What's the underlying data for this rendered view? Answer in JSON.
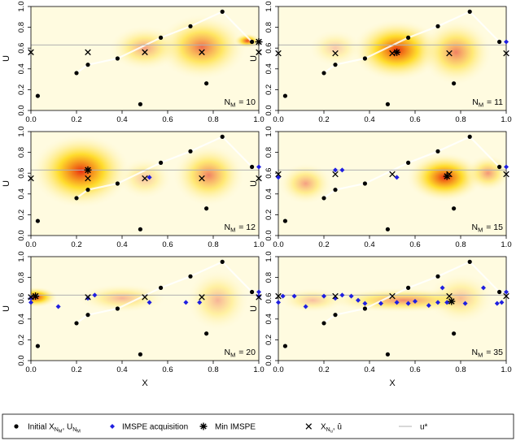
{
  "chart_data": {
    "type": "scatter",
    "xlabel": "X",
    "ylabel": "U",
    "xlim": [
      0,
      1
    ],
    "ylim": [
      0,
      1
    ],
    "x_ticks": [
      "0.0",
      "0.2",
      "0.4",
      "0.6",
      "0.8",
      "1.0"
    ],
    "y_ticks": [
      "0.0",
      "0.2",
      "0.4",
      "0.6",
      "0.8",
      "1.0"
    ],
    "reference_line_u_star": 0.63,
    "colors": {
      "initial": "#000000",
      "imspe": "#1f1fe0",
      "min_imspe": "#000000",
      "xnu": "#000000",
      "ustar": "#b0b0b0",
      "field_high": "#e83010",
      "field_mid": "#ffd400",
      "field_low": "#fffbe0"
    },
    "initial_points": [
      {
        "x": 0.03,
        "y": 0.14
      },
      {
        "x": 0.2,
        "y": 0.36
      },
      {
        "x": 0.25,
        "y": 0.44
      },
      {
        "x": 0.38,
        "y": 0.5
      },
      {
        "x": 0.48,
        "y": 0.06
      },
      {
        "x": 0.57,
        "y": 0.7
      },
      {
        "x": 0.7,
        "y": 0.81
      },
      {
        "x": 0.77,
        "y": 0.26
      },
      {
        "x": 0.84,
        "y": 0.95
      },
      {
        "x": 0.97,
        "y": 0.66
      }
    ],
    "panels": [
      {
        "label_base": "N",
        "label_sub": "M",
        "label_value": "= 10",
        "imspe": [],
        "min_imspe": {
          "x": 1.0,
          "y": 0.66
        },
        "xnu": [
          {
            "x": 0.0,
            "y": 0.56
          },
          {
            "x": 0.25,
            "y": 0.56
          },
          {
            "x": 0.5,
            "y": 0.56
          },
          {
            "x": 0.75,
            "y": 0.56
          },
          {
            "x": 1.0,
            "y": 0.56
          },
          {
            "x": 1.0,
            "y": 0.66
          }
        ],
        "field": [
          {
            "x": 0.75,
            "y": 0.61,
            "rx": 0.2,
            "ry": 0.32,
            "i": 0.7
          },
          {
            "x": 0.5,
            "y": 0.6,
            "rx": 0.16,
            "ry": 0.22,
            "i": 0.45
          },
          {
            "x": 0.95,
            "y": 0.67,
            "rx": 0.06,
            "ry": 0.07,
            "i": 0.9
          }
        ]
      },
      {
        "label_base": "N",
        "label_sub": "M",
        "label_value": "= 11",
        "imspe": [
          {
            "x": 1.0,
            "y": 0.66
          }
        ],
        "min_imspe": {
          "x": 0.52,
          "y": 0.56
        },
        "xnu": [
          {
            "x": 0.0,
            "y": 0.55
          },
          {
            "x": 0.25,
            "y": 0.55
          },
          {
            "x": 0.5,
            "y": 0.55
          },
          {
            "x": 0.75,
            "y": 0.55
          },
          {
            "x": 1.0,
            "y": 0.55
          }
        ],
        "field": [
          {
            "x": 0.52,
            "y": 0.58,
            "rx": 0.2,
            "ry": 0.3,
            "i": 1.0
          },
          {
            "x": 0.78,
            "y": 0.56,
            "rx": 0.16,
            "ry": 0.32,
            "i": 0.6
          },
          {
            "x": 0.25,
            "y": 0.6,
            "rx": 0.12,
            "ry": 0.18,
            "i": 0.25
          }
        ]
      },
      {
        "label_base": "N",
        "label_sub": "M",
        "label_value": "= 12",
        "imspe": [
          {
            "x": 0.52,
            "y": 0.56
          },
          {
            "x": 1.0,
            "y": 0.66
          }
        ],
        "min_imspe": {
          "x": 0.25,
          "y": 0.63
        },
        "xnu": [
          {
            "x": 0.0,
            "y": 0.55
          },
          {
            "x": 0.25,
            "y": 0.55
          },
          {
            "x": 0.5,
            "y": 0.55
          },
          {
            "x": 0.75,
            "y": 0.55
          },
          {
            "x": 1.0,
            "y": 0.55
          },
          {
            "x": 0.25,
            "y": 0.63
          }
        ],
        "field": [
          {
            "x": 0.22,
            "y": 0.62,
            "rx": 0.22,
            "ry": 0.36,
            "i": 1.0
          },
          {
            "x": 0.78,
            "y": 0.58,
            "rx": 0.16,
            "ry": 0.3,
            "i": 0.6
          },
          {
            "x": 0.5,
            "y": 0.55,
            "rx": 0.12,
            "ry": 0.2,
            "i": 0.3
          }
        ]
      },
      {
        "label_base": "N",
        "label_sub": "M",
        "label_value": "= 15",
        "imspe": [
          {
            "x": 0.0,
            "y": 0.56
          },
          {
            "x": 0.25,
            "y": 0.63
          },
          {
            "x": 0.28,
            "y": 0.63
          },
          {
            "x": 0.52,
            "y": 0.56
          },
          {
            "x": 1.0,
            "y": 0.66
          }
        ],
        "min_imspe": {
          "x": 0.74,
          "y": 0.57
        },
        "xnu": [
          {
            "x": 0.0,
            "y": 0.59
          },
          {
            "x": 0.25,
            "y": 0.59
          },
          {
            "x": 0.5,
            "y": 0.59
          },
          {
            "x": 0.75,
            "y": 0.59
          },
          {
            "x": 1.0,
            "y": 0.59
          },
          {
            "x": 0.74,
            "y": 0.57
          }
        ],
        "field": [
          {
            "x": 0.73,
            "y": 0.56,
            "rx": 0.17,
            "ry": 0.24,
            "i": 1.0
          },
          {
            "x": 0.12,
            "y": 0.5,
            "rx": 0.12,
            "ry": 0.2,
            "i": 0.45
          },
          {
            "x": 0.92,
            "y": 0.6,
            "rx": 0.1,
            "ry": 0.18,
            "i": 0.5
          }
        ]
      },
      {
        "label_base": "N",
        "label_sub": "M",
        "label_value": "= 20",
        "imspe": [
          {
            "x": 0.0,
            "y": 0.56
          },
          {
            "x": 0.0,
            "y": 0.6
          },
          {
            "x": 0.12,
            "y": 0.52
          },
          {
            "x": 0.25,
            "y": 0.6
          },
          {
            "x": 0.28,
            "y": 0.63
          },
          {
            "x": 0.52,
            "y": 0.56
          },
          {
            "x": 0.68,
            "y": 0.56
          },
          {
            "x": 0.74,
            "y": 0.56
          },
          {
            "x": 1.0,
            "y": 0.62
          },
          {
            "x": 1.0,
            "y": 0.66
          }
        ],
        "min_imspe": {
          "x": 0.02,
          "y": 0.62
        },
        "xnu": [
          {
            "x": 0.0,
            "y": 0.61
          },
          {
            "x": 0.25,
            "y": 0.61
          },
          {
            "x": 0.5,
            "y": 0.61
          },
          {
            "x": 0.75,
            "y": 0.61
          },
          {
            "x": 1.0,
            "y": 0.61
          },
          {
            "x": 0.02,
            "y": 0.62
          }
        ],
        "field": [
          {
            "x": 0.02,
            "y": 0.61,
            "rx": 0.1,
            "ry": 0.1,
            "i": 1.0
          },
          {
            "x": 0.4,
            "y": 0.6,
            "rx": 0.2,
            "ry": 0.14,
            "i": 0.35
          },
          {
            "x": 0.82,
            "y": 0.58,
            "rx": 0.14,
            "ry": 0.3,
            "i": 0.35
          }
        ]
      },
      {
        "label_base": "N",
        "label_sub": "M",
        "label_value": "= 35",
        "imspe": [
          {
            "x": 0.0,
            "y": 0.56
          },
          {
            "x": 0.02,
            "y": 0.62
          },
          {
            "x": 0.07,
            "y": 0.62
          },
          {
            "x": 0.12,
            "y": 0.52
          },
          {
            "x": 0.2,
            "y": 0.62
          },
          {
            "x": 0.25,
            "y": 0.6
          },
          {
            "x": 0.28,
            "y": 0.63
          },
          {
            "x": 0.32,
            "y": 0.62
          },
          {
            "x": 0.35,
            "y": 0.58
          },
          {
            "x": 0.38,
            "y": 0.55
          },
          {
            "x": 0.45,
            "y": 0.55
          },
          {
            "x": 0.52,
            "y": 0.56
          },
          {
            "x": 0.57,
            "y": 0.55
          },
          {
            "x": 0.6,
            "y": 0.57
          },
          {
            "x": 0.66,
            "y": 0.53
          },
          {
            "x": 0.7,
            "y": 0.56
          },
          {
            "x": 0.72,
            "y": 0.7
          },
          {
            "x": 0.74,
            "y": 0.56
          },
          {
            "x": 0.82,
            "y": 0.55
          },
          {
            "x": 0.9,
            "y": 0.7
          },
          {
            "x": 0.96,
            "y": 0.55
          },
          {
            "x": 0.98,
            "y": 0.56
          },
          {
            "x": 1.0,
            "y": 0.66
          }
        ],
        "min_imspe": {
          "x": 0.76,
          "y": 0.57
        },
        "xnu": [
          {
            "x": 0.0,
            "y": 0.62
          },
          {
            "x": 0.25,
            "y": 0.62
          },
          {
            "x": 0.5,
            "y": 0.62
          },
          {
            "x": 0.75,
            "y": 0.62
          },
          {
            "x": 1.0,
            "y": 0.62
          },
          {
            "x": 0.76,
            "y": 0.57
          }
        ],
        "field": [
          {
            "x": 0.55,
            "y": 0.58,
            "rx": 0.35,
            "ry": 0.12,
            "i": 0.55
          },
          {
            "x": 0.15,
            "y": 0.58,
            "rx": 0.15,
            "ry": 0.12,
            "i": 0.3
          },
          {
            "x": 0.8,
            "y": 0.6,
            "rx": 0.15,
            "ry": 0.25,
            "i": 0.3
          }
        ]
      }
    ]
  },
  "legend": {
    "initial_base": "Initial X",
    "initial_mid": ", U",
    "sub_n": "N",
    "sub_m": "M",
    "imspe": "IMSPE acquisition",
    "min_imspe": "Min IMSPE",
    "xnu_base": "X",
    "xnu_tail": ", û",
    "ustar": "u*"
  }
}
